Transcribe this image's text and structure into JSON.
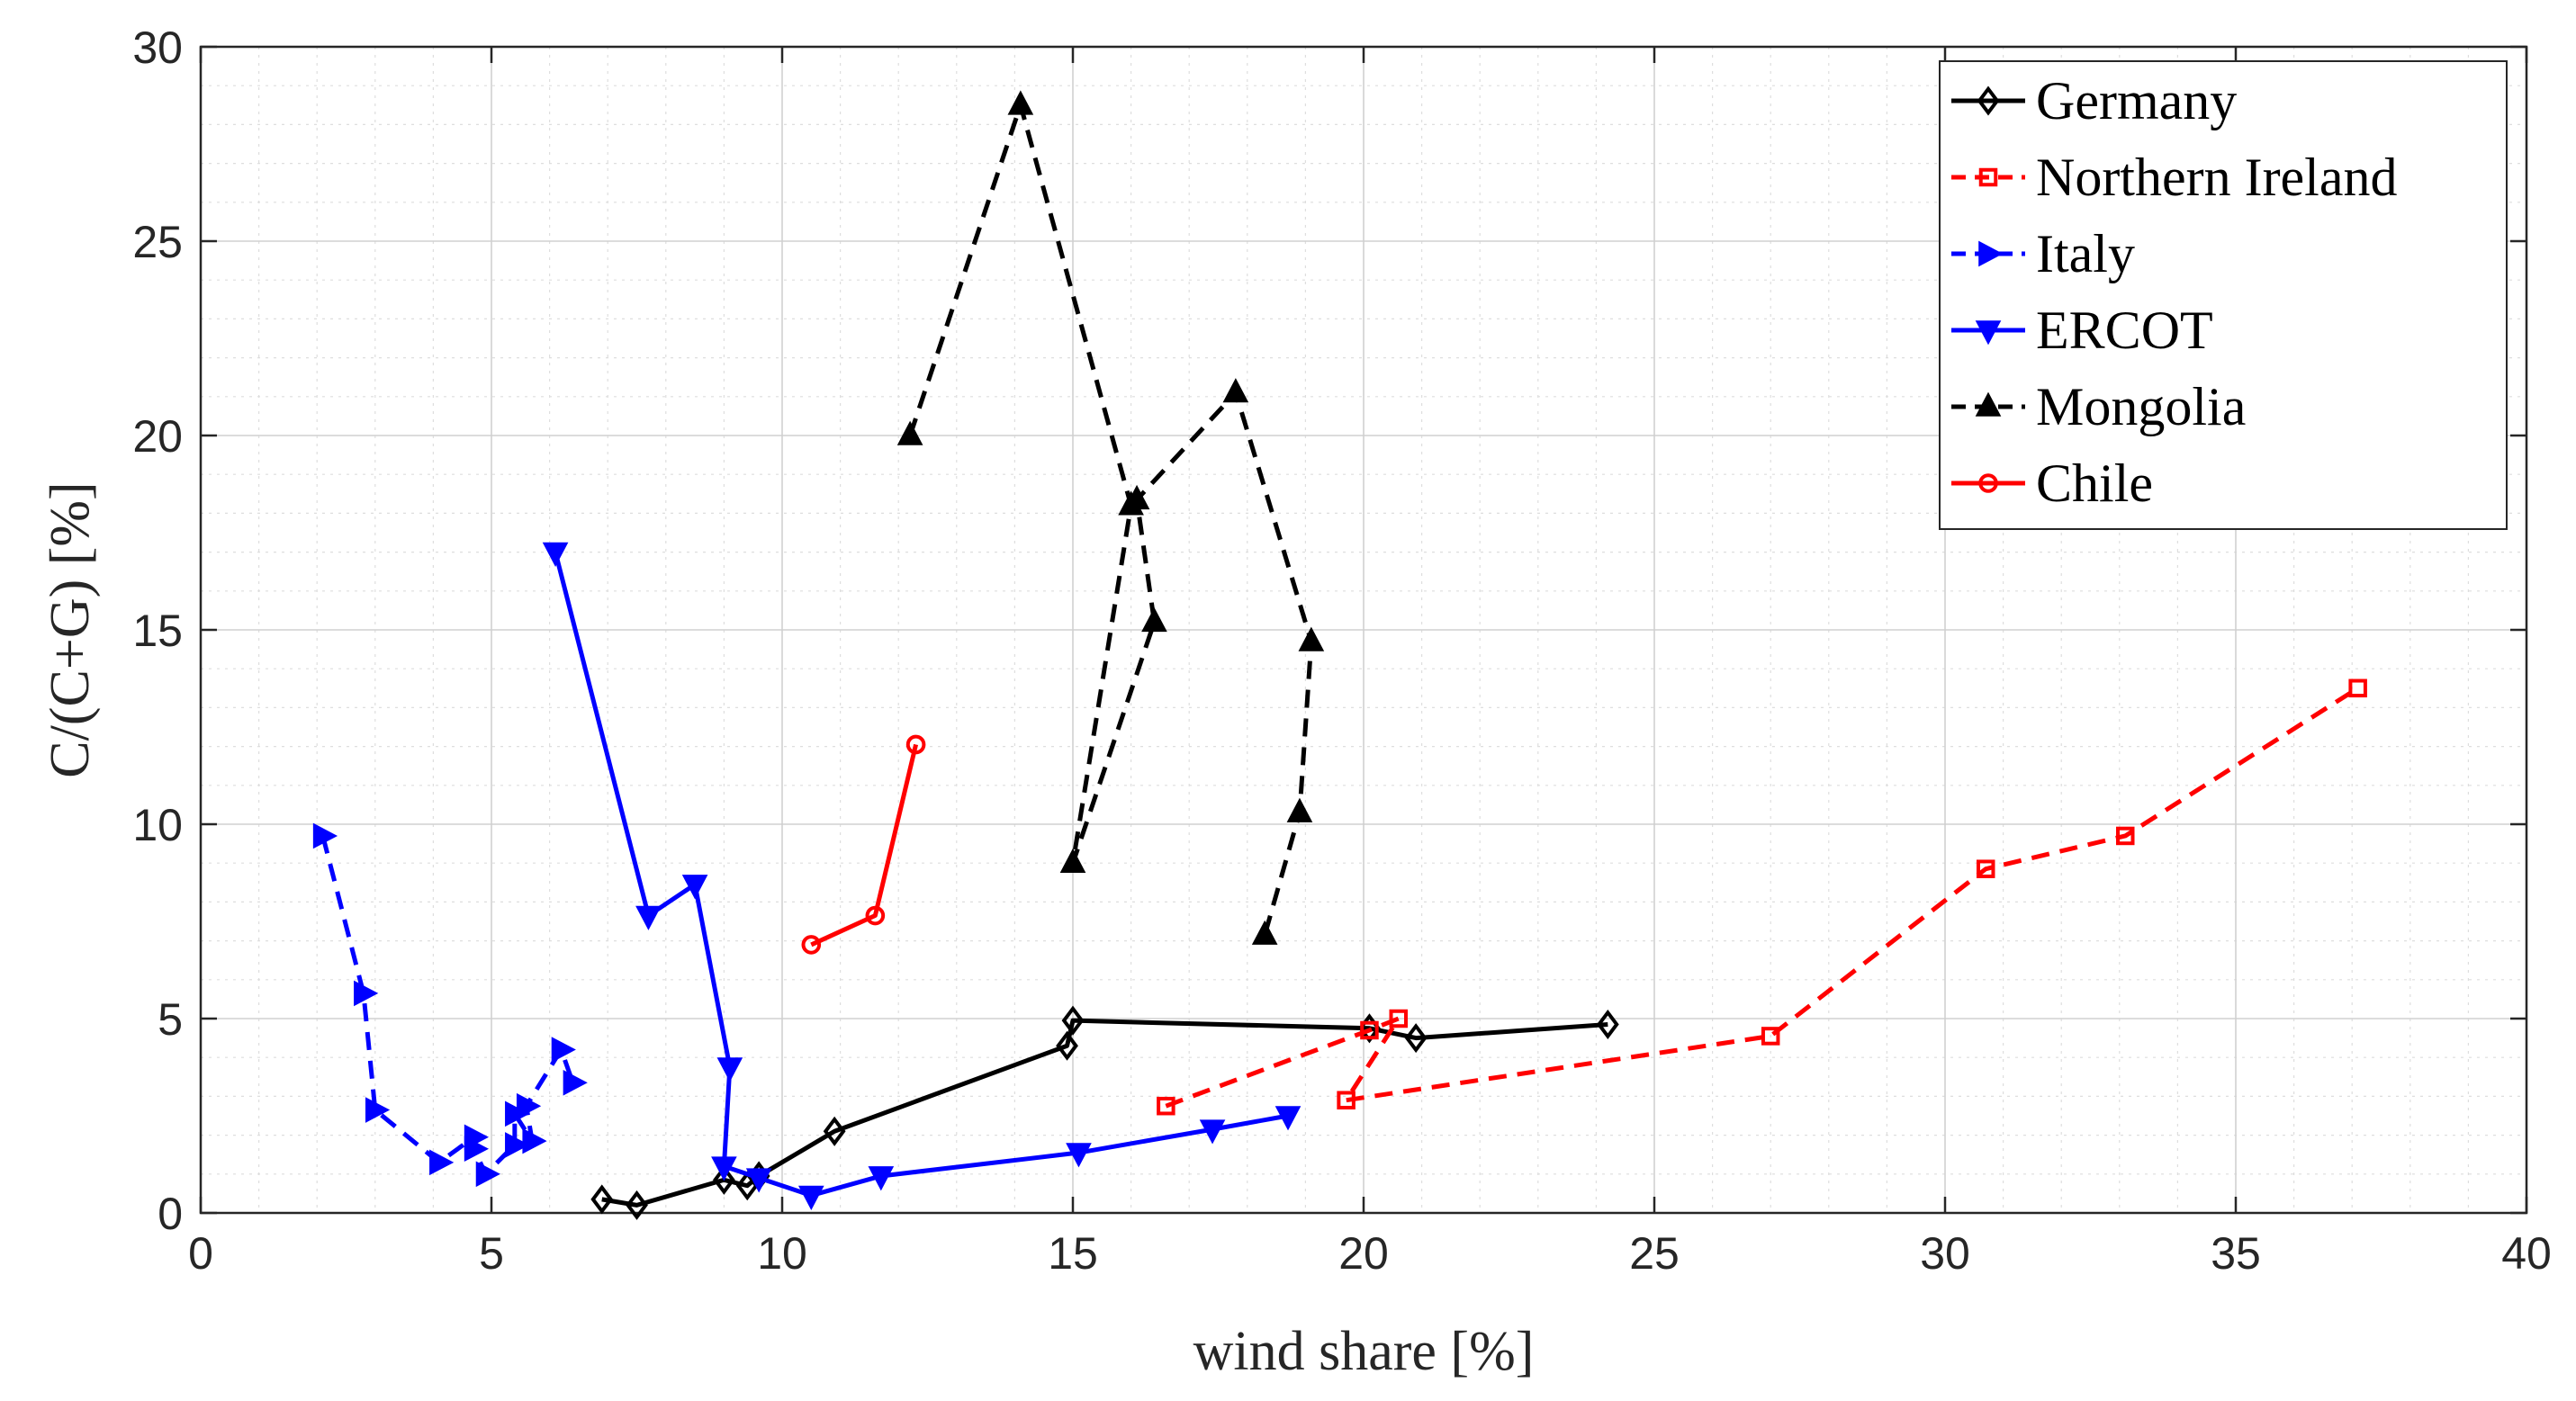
{
  "chart_data": {
    "type": "line",
    "xlabel": "wind share [%]",
    "ylabel": "C/(C+G) [%]",
    "xlim": [
      0,
      40
    ],
    "ylim": [
      0,
      30
    ],
    "xticks": [
      0,
      5,
      10,
      15,
      20,
      25,
      30,
      35,
      40
    ],
    "yticks": [
      0,
      5,
      10,
      15,
      20,
      25,
      30
    ],
    "grid": true,
    "minor_grid": true,
    "legend_position": "top-right",
    "series": [
      {
        "name": "Germany",
        "color": "#000000",
        "line": "solid",
        "marker": "diamond",
        "points": [
          [
            6.9,
            0.35
          ],
          [
            7.5,
            0.2
          ],
          [
            9.0,
            0.85
          ],
          [
            9.4,
            0.7
          ],
          [
            9.6,
            0.95
          ],
          [
            10.9,
            2.1
          ],
          [
            14.9,
            4.3
          ],
          [
            15.0,
            4.95
          ],
          [
            20.1,
            4.75
          ],
          [
            20.9,
            4.5
          ],
          [
            24.2,
            4.85
          ]
        ]
      },
      {
        "name": "Northern Ireland",
        "color": "#ff0000",
        "line": "dashed",
        "marker": "square",
        "points": [
          [
            16.6,
            2.75
          ],
          [
            20.1,
            4.7
          ],
          [
            20.6,
            5.0
          ],
          [
            19.7,
            2.9
          ],
          [
            27.0,
            4.55
          ],
          [
            30.7,
            8.85
          ],
          [
            33.1,
            9.7
          ],
          [
            37.1,
            13.5
          ]
        ]
      },
      {
        "name": "Italy",
        "color": "#0000ff",
        "line": "dashed",
        "marker": "triangle-right",
        "points": [
          [
            2.1,
            9.7
          ],
          [
            2.8,
            5.65
          ],
          [
            3.0,
            2.65
          ],
          [
            4.1,
            1.3
          ],
          [
            4.7,
            1.95
          ],
          [
            4.7,
            1.65
          ],
          [
            4.9,
            1.0
          ],
          [
            5.4,
            1.75
          ],
          [
            5.4,
            2.55
          ],
          [
            5.7,
            1.85
          ],
          [
            5.6,
            2.75
          ],
          [
            6.2,
            4.2
          ],
          [
            6.4,
            3.35
          ]
        ]
      },
      {
        "name": "ERCOT",
        "color": "#0000ff",
        "line": "solid",
        "marker": "triangle-down",
        "points": [
          [
            6.1,
            17.0
          ],
          [
            7.7,
            7.65
          ],
          [
            8.5,
            8.45
          ],
          [
            9.1,
            3.75
          ],
          [
            9.0,
            1.2
          ],
          [
            9.6,
            0.9
          ],
          [
            10.5,
            0.45
          ],
          [
            11.7,
            0.95
          ],
          [
            15.1,
            1.55
          ],
          [
            17.4,
            2.15
          ],
          [
            18.7,
            2.5
          ]
        ]
      },
      {
        "name": "Mongolia",
        "color": "#000000",
        "line": "dashed",
        "marker": "triangle-up",
        "points": [
          [
            12.2,
            20.0
          ],
          [
            14.1,
            28.5
          ],
          [
            16.0,
            18.2
          ],
          [
            15.0,
            9.0
          ],
          [
            16.4,
            15.2
          ],
          [
            16.1,
            18.35
          ],
          [
            17.8,
            21.1
          ],
          [
            19.1,
            14.7
          ],
          [
            18.9,
            10.3
          ],
          [
            18.3,
            7.15
          ]
        ]
      },
      {
        "name": "Chile",
        "color": "#ff0000",
        "line": "solid",
        "marker": "circle",
        "points": [
          [
            10.5,
            6.9
          ],
          [
            11.6,
            7.65
          ],
          [
            12.3,
            12.05
          ]
        ]
      }
    ]
  }
}
